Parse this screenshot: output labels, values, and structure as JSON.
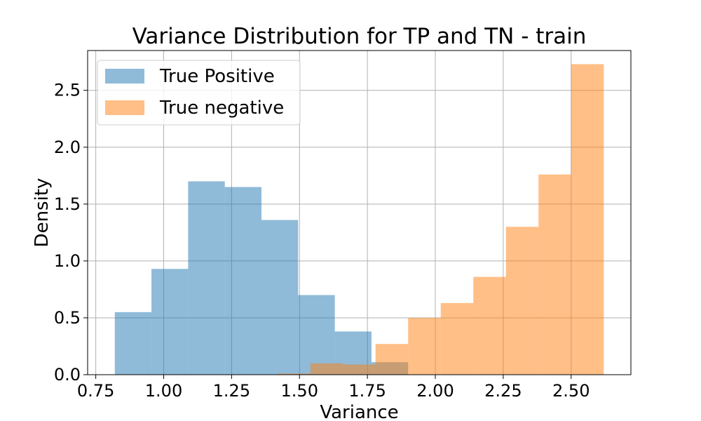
{
  "chart_data": {
    "type": "bar",
    "title": "Variance Distribution for TP and TN - train",
    "xlabel": "Variance",
    "ylabel": "Density",
    "xlim": [
      0.72,
      2.72
    ],
    "ylim": [
      0,
      2.85
    ],
    "grid": true,
    "legend_position": "top-left",
    "x_ticks": [
      {
        "value": 0.75,
        "label": "0.75"
      },
      {
        "value": 1.0,
        "label": "1.00"
      },
      {
        "value": 1.25,
        "label": "1.25"
      },
      {
        "value": 1.5,
        "label": "1.50"
      },
      {
        "value": 1.75,
        "label": "1.75"
      },
      {
        "value": 2.0,
        "label": "2.00"
      },
      {
        "value": 2.25,
        "label": "2.25"
      },
      {
        "value": 2.5,
        "label": "2.50"
      }
    ],
    "y_ticks": [
      {
        "value": 0.0,
        "label": "0.0"
      },
      {
        "value": 0.5,
        "label": "0.5"
      },
      {
        "value": 1.0,
        "label": "1.0"
      },
      {
        "value": 1.5,
        "label": "1.5"
      },
      {
        "value": 2.0,
        "label": "2.0"
      },
      {
        "value": 2.5,
        "label": "2.5"
      }
    ],
    "series": [
      {
        "name": "True Positive",
        "color": "#1f77b4",
        "opacity": 0.5,
        "bin_edges": [
          0.82,
          0.955,
          1.09,
          1.225,
          1.36,
          1.495,
          1.63,
          1.765,
          1.9
        ],
        "values": [
          0.55,
          0.93,
          1.7,
          1.65,
          1.36,
          0.7,
          0.38,
          0.11
        ]
      },
      {
        "name": "True negative",
        "color": "#ff7f0e",
        "opacity": 0.5,
        "bin_edges": [
          1.42,
          1.54,
          1.66,
          1.78,
          1.9,
          2.02,
          2.14,
          2.26,
          2.38,
          2.5,
          2.62
        ],
        "values": [
          0.01,
          0.1,
          0.09,
          0.27,
          0.5,
          0.63,
          0.86,
          1.3,
          1.76,
          2.73
        ],
        "overlap_counts": [
          0.01,
          0.1,
          0.09,
          0.12,
          0.06,
          0.01,
          0,
          0,
          0,
          0
        ]
      }
    ]
  }
}
